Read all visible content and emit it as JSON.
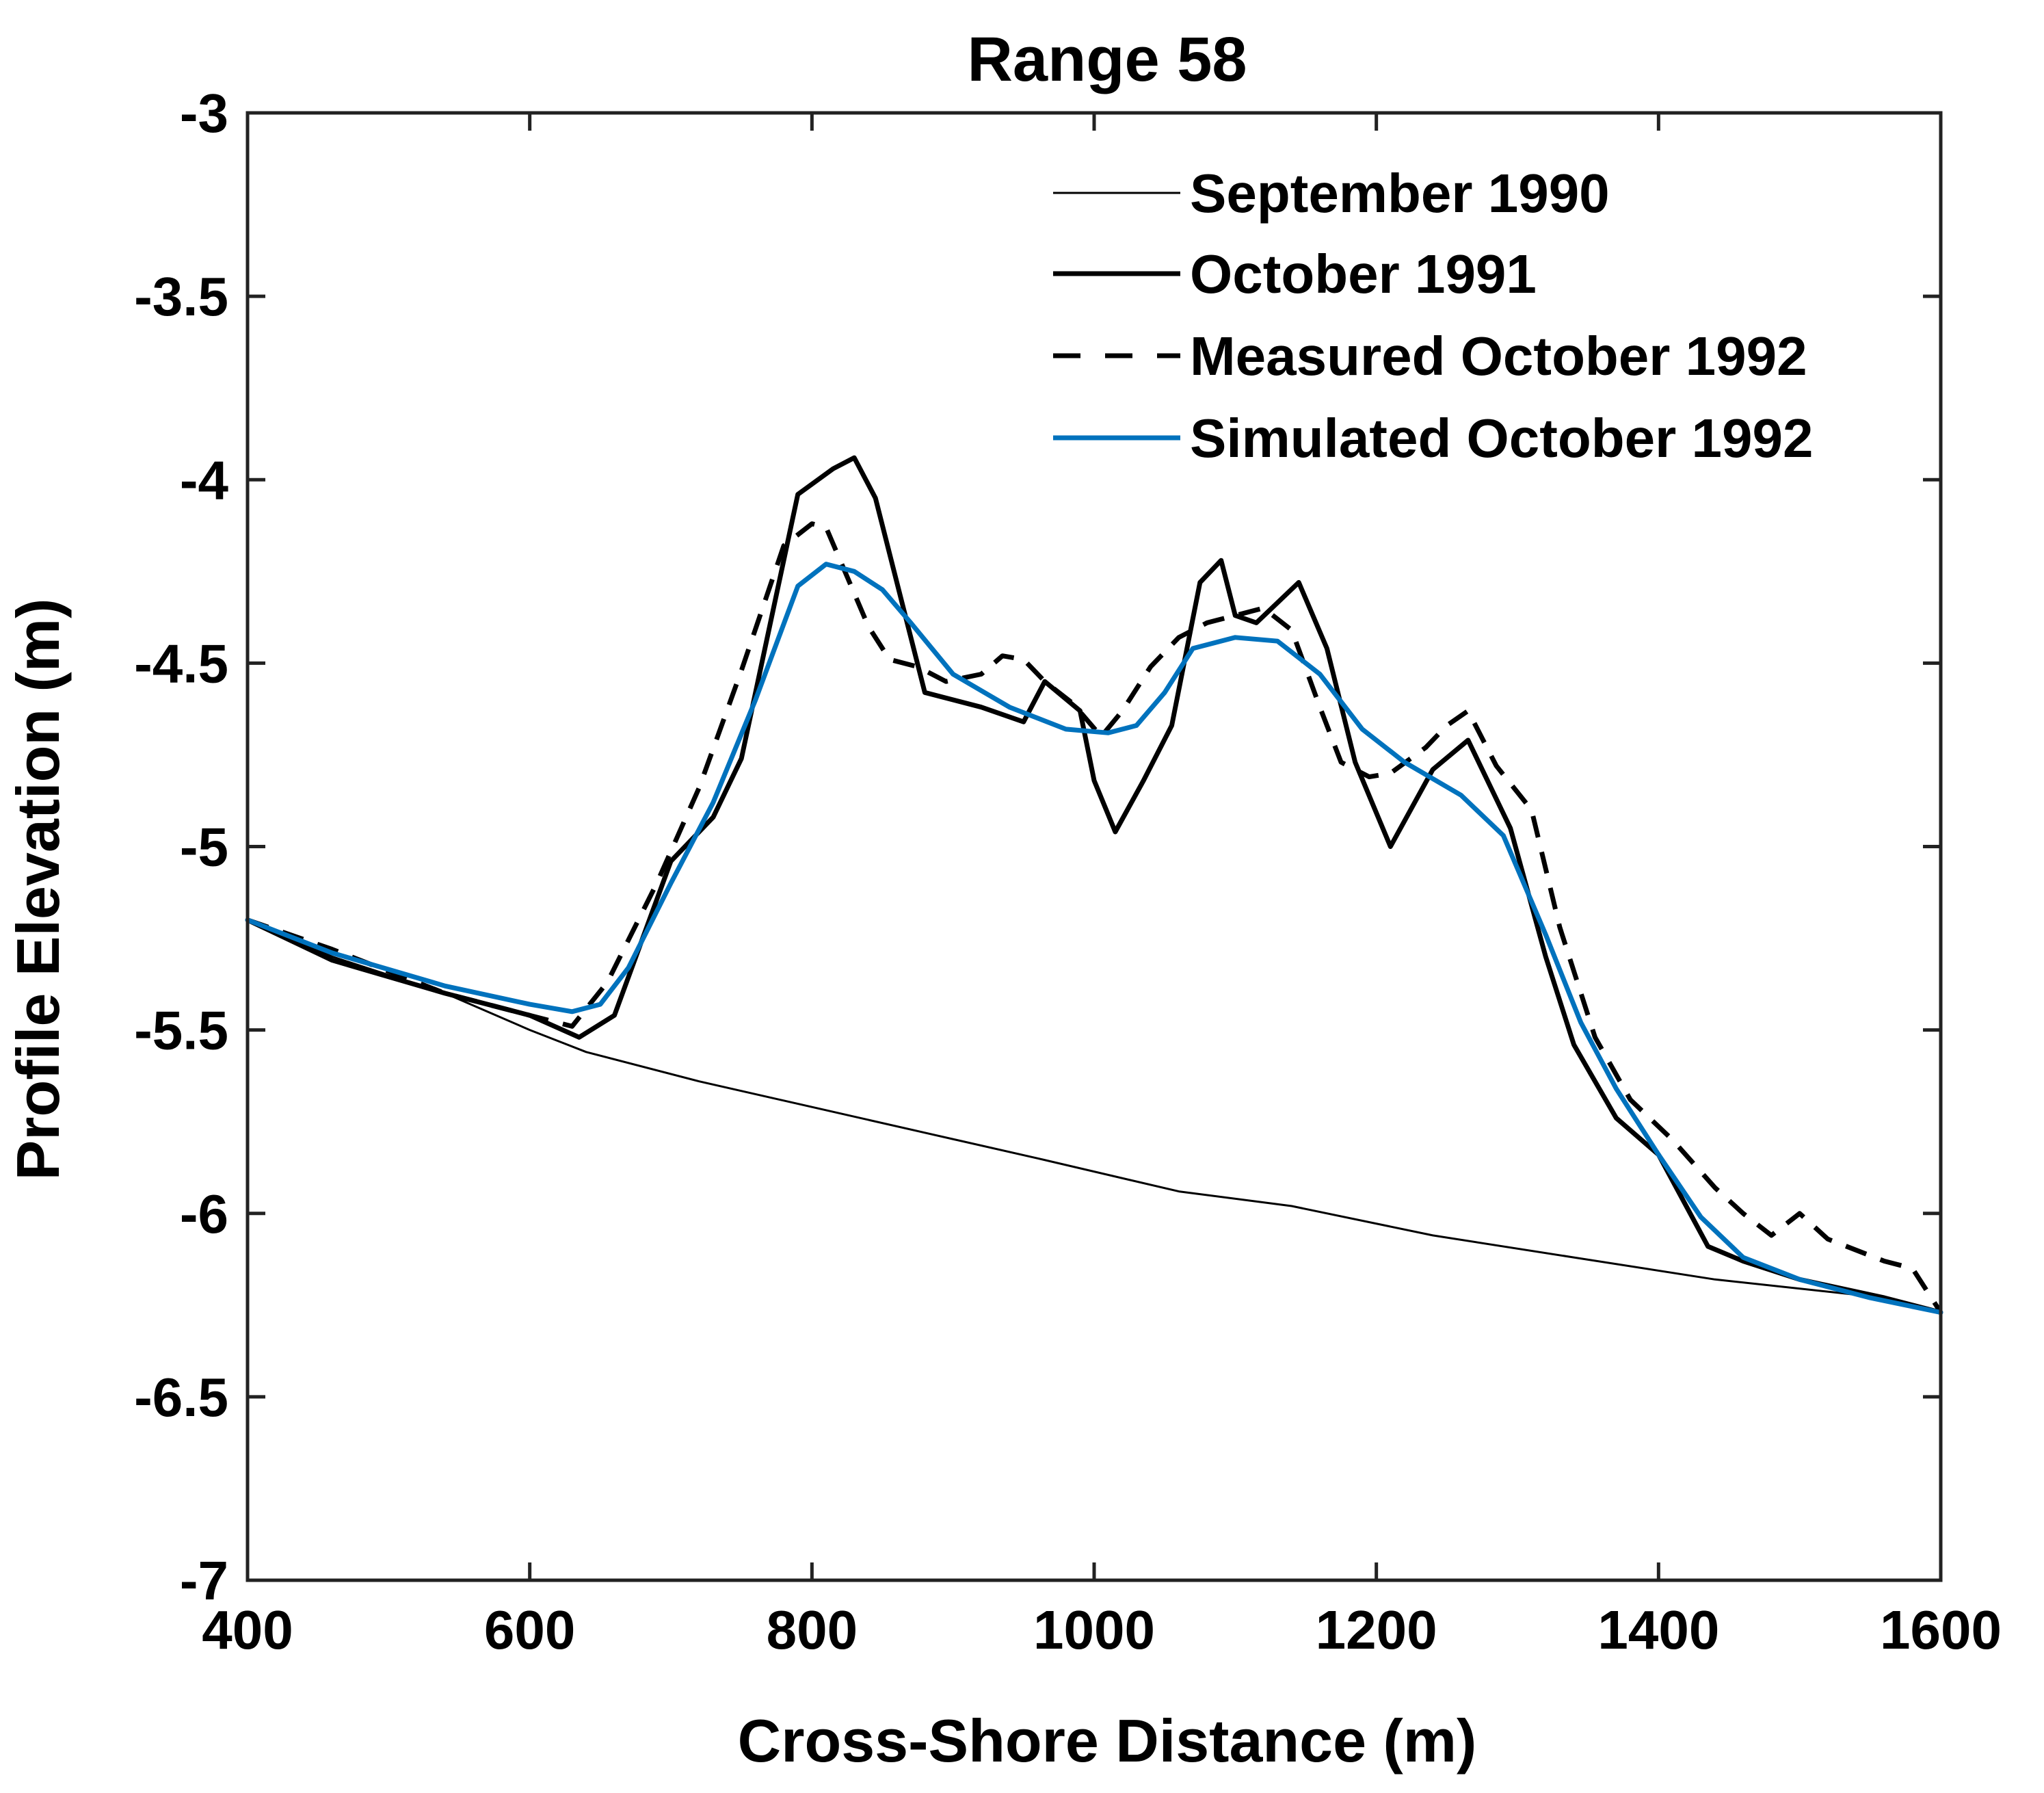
{
  "chart_data": {
    "type": "line",
    "title": "Range 58",
    "xlabel": "Cross-Shore Distance (m)",
    "ylabel": "Profile Elevation (m)",
    "xlim": [
      400,
      1600
    ],
    "ylim": [
      -7,
      -3
    ],
    "xticks": [
      400,
      600,
      800,
      1000,
      1200,
      1400,
      1600
    ],
    "yticks": [
      -7,
      -6.5,
      -6,
      -5.5,
      -5,
      -4.5,
      -4,
      -3.5,
      -3
    ],
    "xtick_labels": [
      "400",
      "600",
      "800",
      "1000",
      "1200",
      "1400",
      "1600"
    ],
    "ytick_labels": [
      "-7",
      "-6.5",
      "-6",
      "-5.5",
      "-5",
      "-4.5",
      "-4",
      "-3.5",
      "-3"
    ],
    "legend_position": "top-right",
    "series": [
      {
        "name": "September 1990",
        "color": "#000000",
        "style": "thin",
        "x": [
          400,
          460,
          540,
          600,
          640,
          720,
          800,
          880,
          960,
          1060,
          1140,
          1240,
          1340,
          1440,
          1560,
          1600
        ],
        "y": [
          -5.2,
          -5.3,
          -5.4,
          -5.5,
          -5.56,
          -5.64,
          -5.71,
          -5.78,
          -5.85,
          -5.94,
          -5.98,
          -6.06,
          -6.12,
          -6.18,
          -6.23,
          -6.27
        ]
      },
      {
        "name": "October 1991",
        "color": "#000000",
        "style": "thick",
        "x": [
          400,
          460,
          540,
          600,
          635,
          660,
          700,
          730,
          750,
          790,
          815,
          830,
          845,
          880,
          920,
          950,
          965,
          990,
          1000,
          1015,
          1035,
          1055,
          1075,
          1090,
          1100,
          1115,
          1145,
          1165,
          1185,
          1210,
          1240,
          1265,
          1295,
          1320,
          1340,
          1370,
          1400,
          1435,
          1460,
          1500,
          1560,
          1600
        ],
        "y": [
          -5.2,
          -5.31,
          -5.4,
          -5.46,
          -5.52,
          -5.46,
          -5.04,
          -4.92,
          -4.76,
          -4.04,
          -3.97,
          -3.94,
          -4.05,
          -4.58,
          -4.62,
          -4.66,
          -4.55,
          -4.63,
          -4.82,
          -4.96,
          -4.82,
          -4.67,
          -4.28,
          -4.22,
          -4.37,
          -4.39,
          -4.28,
          -4.46,
          -4.77,
          -5.0,
          -4.79,
          -4.71,
          -4.95,
          -5.3,
          -5.54,
          -5.74,
          -5.84,
          -6.09,
          -6.13,
          -6.18,
          -6.23,
          -6.27
        ]
      },
      {
        "name": "Measured October 1992",
        "color": "#000000",
        "style": "dashed",
        "x": [
          400,
          460,
          540,
          600,
          630,
          655,
          690,
          720,
          750,
          780,
          800,
          810,
          820,
          840,
          855,
          875,
          895,
          920,
          935,
          950,
          965,
          985,
          1005,
          1020,
          1040,
          1060,
          1080,
          1100,
          1120,
          1140,
          1160,
          1175,
          1195,
          1210,
          1235,
          1250,
          1265,
          1285,
          1310,
          1330,
          1355,
          1380,
          1410,
          1440,
          1460,
          1480,
          1500,
          1520,
          1560,
          1580,
          1600
        ],
        "y": [
          -5.2,
          -5.28,
          -5.4,
          -5.46,
          -5.49,
          -5.37,
          -5.1,
          -4.84,
          -4.52,
          -4.18,
          -4.12,
          -4.13,
          -4.22,
          -4.4,
          -4.49,
          -4.51,
          -4.55,
          -4.53,
          -4.48,
          -4.49,
          -4.55,
          -4.61,
          -4.7,
          -4.63,
          -4.51,
          -4.43,
          -4.39,
          -4.37,
          -4.35,
          -4.41,
          -4.62,
          -4.77,
          -4.81,
          -4.8,
          -4.73,
          -4.67,
          -4.63,
          -4.78,
          -4.9,
          -5.22,
          -5.52,
          -5.69,
          -5.8,
          -5.93,
          -6.0,
          -6.06,
          -6.0,
          -6.07,
          -6.13,
          -6.15,
          -6.27
        ]
      },
      {
        "name": "Simulated October 1992",
        "color": "#0072BD",
        "style": "thick",
        "x": [
          400,
          460,
          540,
          600,
          630,
          650,
          670,
          700,
          730,
          760,
          790,
          810,
          830,
          850,
          870,
          900,
          940,
          980,
          1010,
          1030,
          1050,
          1070,
          1100,
          1130,
          1160,
          1190,
          1220,
          1260,
          1290,
          1320,
          1345,
          1370,
          1400,
          1430,
          1460,
          1500,
          1550,
          1600
        ],
        "y": [
          -5.2,
          -5.29,
          -5.38,
          -5.43,
          -5.45,
          -5.43,
          -5.33,
          -5.1,
          -4.88,
          -4.6,
          -4.29,
          -4.23,
          -4.25,
          -4.3,
          -4.39,
          -4.53,
          -4.62,
          -4.68,
          -4.69,
          -4.67,
          -4.58,
          -4.46,
          -4.43,
          -4.44,
          -4.53,
          -4.68,
          -4.77,
          -4.86,
          -4.97,
          -5.24,
          -5.48,
          -5.66,
          -5.84,
          -6.01,
          -6.12,
          -6.18,
          -6.23,
          -6.27
        ]
      }
    ]
  }
}
